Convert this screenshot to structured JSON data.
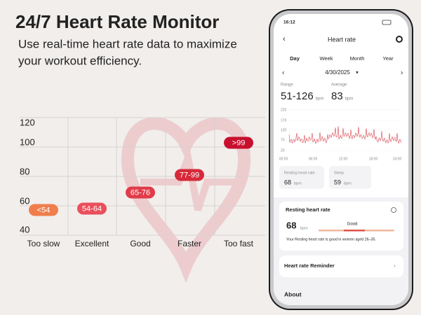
{
  "header": {
    "title": "24/7 Heart Rate Monitor",
    "subtitle": [
      "Use real-time heart rate data to maximize",
      "your workout efficiency."
    ]
  },
  "zones": {
    "axis_labels": [
      "120",
      "100",
      "80",
      "60",
      "40"
    ],
    "items": [
      {
        "label": "Too slow",
        "range": "<54"
      },
      {
        "label": "Excellent",
        "range": "54-64"
      },
      {
        "label": "Good",
        "range": "65-76"
      },
      {
        "label": "Faster",
        "range": "77-99"
      },
      {
        "label": "Too fast",
        "range": ">99"
      }
    ]
  },
  "phone": {
    "status_time": "16:12",
    "nav_title": "Heart rate",
    "tabs": [
      "Day",
      "Week",
      "Month",
      "Year"
    ],
    "date": "4/30/2025",
    "stats": [
      {
        "label": "Range",
        "value": "51-126",
        "unit": "bpm"
      },
      {
        "label": "Average",
        "value": "83",
        "unit": "bpm"
      }
    ],
    "graph": {
      "y_labels": [
        "220",
        "170",
        "120",
        "70",
        "20"
      ],
      "x_labels": [
        "00:00",
        "06:00",
        "12:00",
        "18:00",
        "24:00"
      ]
    },
    "cards": [
      {
        "label": "Resting heart rate",
        "value": "68",
        "unit": "bpm"
      },
      {
        "label": "Sleep",
        "value": "59",
        "unit": "bpm"
      }
    ],
    "resting_section": {
      "title": "Resting heart rate",
      "value": "68",
      "unit": "bpm",
      "status": "Good",
      "note": "Your Resting heart rate is good in women aged 26–35."
    },
    "reminder": "Heart rate Reminder",
    "about": "About"
  }
}
